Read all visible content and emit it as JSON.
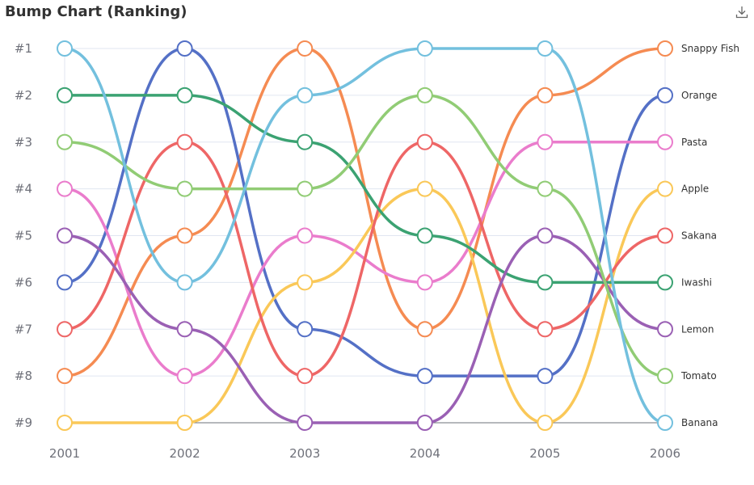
{
  "title": "Bump Chart (Ranking)",
  "toolbar": {
    "download_icon": "download-icon"
  },
  "chart_data": {
    "type": "line",
    "title": "Bump Chart (Ranking)",
    "x": [
      "2001",
      "2002",
      "2003",
      "2004",
      "2005",
      "2006"
    ],
    "y_ticks": [
      "#1",
      "#2",
      "#3",
      "#4",
      "#5",
      "#6",
      "#7",
      "#8",
      "#9"
    ],
    "ylim": [
      1,
      9
    ],
    "y_inverted": true,
    "grid": true,
    "legend": "none",
    "series": [
      {
        "name": "Snappy Fish",
        "color": "#f58b52",
        "values": [
          8,
          5,
          1,
          7,
          2,
          1
        ]
      },
      {
        "name": "Orange",
        "color": "#5470c6",
        "values": [
          6,
          1,
          7,
          8,
          8,
          2
        ]
      },
      {
        "name": "Pasta",
        "color": "#ea7ccc",
        "values": [
          4,
          8,
          5,
          6,
          3,
          3
        ]
      },
      {
        "name": "Apple",
        "color": "#fac858",
        "values": [
          9,
          9,
          6,
          4,
          9,
          4
        ]
      },
      {
        "name": "Sakana",
        "color": "#ee6666",
        "values": [
          7,
          3,
          8,
          3,
          7,
          5
        ]
      },
      {
        "name": "Iwashi",
        "color": "#3ba272",
        "values": [
          2,
          2,
          3,
          5,
          6,
          6
        ]
      },
      {
        "name": "Lemon",
        "color": "#9a60b4",
        "values": [
          5,
          7,
          9,
          9,
          5,
          7
        ]
      },
      {
        "name": "Tomato",
        "color": "#91cc75",
        "values": [
          3,
          4,
          4,
          2,
          4,
          8
        ]
      },
      {
        "name": "Banana",
        "color": "#73c0de",
        "values": [
          1,
          6,
          2,
          1,
          1,
          9
        ]
      }
    ]
  }
}
